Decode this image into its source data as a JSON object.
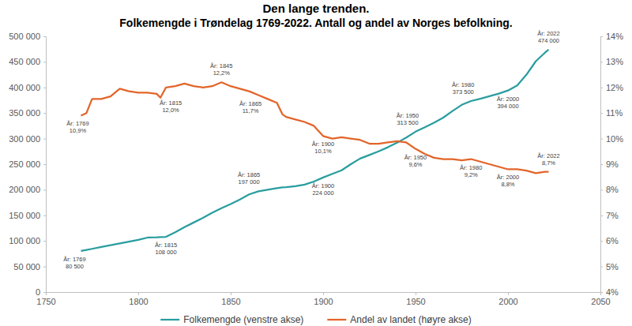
{
  "chart_data": {
    "type": "line",
    "title": "Den lange trenden.",
    "subtitle": "Folkemengde i Trøndelag 1769-2022. Antall og andel av Norges befolkning.",
    "x": [
      1769,
      1772,
      1775,
      1780,
      1785,
      1790,
      1795,
      1800,
      1805,
      1810,
      1812,
      1815,
      1820,
      1825,
      1830,
      1835,
      1840,
      1845,
      1850,
      1855,
      1860,
      1865,
      1870,
      1875,
      1878,
      1880,
      1885,
      1890,
      1895,
      1900,
      1905,
      1910,
      1915,
      1920,
      1925,
      1930,
      1935,
      1940,
      1945,
      1950,
      1955,
      1960,
      1965,
      1970,
      1975,
      1980,
      1985,
      1990,
      1995,
      2000,
      2005,
      2010,
      2015,
      2020,
      2022
    ],
    "series": [
      {
        "name": "Folkemengde (venstre akse)",
        "color": "#2a9d9f",
        "axis": "y",
        "values": [
          80500,
          82500,
          84500,
          88000,
          91500,
          95000,
          98500,
          102000,
          106500,
          107000,
          107500,
          108000,
          117000,
          127000,
          136000,
          145000,
          155000,
          164000,
          172000,
          181000,
          191000,
          197000,
          200000,
          203000,
          204500,
          205000,
          207000,
          210000,
          216000,
          224000,
          231000,
          238000,
          250000,
          261000,
          268000,
          275000,
          283000,
          292000,
          302000,
          313500,
          322000,
          331000,
          341000,
          354000,
          366000,
          373500,
          378000,
          383000,
          388000,
          394000,
          404000,
          425000,
          451000,
          468000,
          474000
        ]
      },
      {
        "name": "Andel av landet (høyre akse)",
        "color": "#e2652a",
        "axis": "y2",
        "values": [
          10.9,
          11.0,
          11.55,
          11.55,
          11.65,
          11.95,
          11.85,
          11.8,
          11.8,
          11.75,
          11.6,
          12.0,
          12.05,
          12.15,
          12.05,
          12.0,
          12.05,
          12.2,
          12.05,
          11.95,
          11.85,
          11.7,
          11.55,
          11.4,
          10.95,
          10.85,
          10.75,
          10.65,
          10.5,
          10.1,
          10.0,
          10.05,
          10.0,
          9.95,
          9.8,
          9.8,
          9.85,
          9.9,
          9.85,
          9.6,
          9.4,
          9.25,
          9.2,
          9.2,
          9.15,
          9.2,
          9.1,
          9.0,
          8.9,
          8.8,
          8.8,
          8.75,
          8.65,
          8.7,
          8.7
        ]
      }
    ],
    "xlim": [
      1750,
      2050
    ],
    "xticks": [
      1750,
      1800,
      1850,
      1900,
      1950,
      2000,
      2050
    ],
    "ylim": [
      0,
      500000
    ],
    "yticks": [
      0,
      {
        "value": 50000,
        "label": "50 000"
      },
      {
        "value": 100000,
        "label": "100 000"
      },
      {
        "value": 150000,
        "label": "150 000"
      },
      {
        "value": 200000,
        "label": "200 000"
      },
      {
        "value": 250000,
        "label": "250 000"
      },
      {
        "value": 300000,
        "label": "300 000"
      },
      {
        "value": 350000,
        "label": "350 000"
      },
      {
        "value": 400000,
        "label": "400 000"
      },
      {
        "value": 450000,
        "label": "450 000"
      },
      {
        "value": 500000,
        "label": "500 000"
      }
    ],
    "y2lim": [
      4,
      14
    ],
    "y2ticks": [
      {
        "value": 4,
        "label": "4%"
      },
      {
        "value": 5,
        "label": "5%"
      },
      {
        "value": 6,
        "label": "6%"
      },
      {
        "value": 7,
        "label": "7%"
      },
      {
        "value": 8,
        "label": "8%"
      },
      {
        "value": 9,
        "label": "9%"
      },
      {
        "value": 10,
        "label": "10%"
      },
      {
        "value": 11,
        "label": "11%"
      },
      {
        "value": 12,
        "label": "12%"
      },
      {
        "value": 13,
        "label": "13%"
      },
      {
        "value": 14,
        "label": "14%"
      }
    ],
    "grid": false,
    "legend": "bottom",
    "annotations": [
      {
        "x": 1769,
        "y": 80500,
        "axis": "y",
        "text": [
          "År: 1769",
          "80 500"
        ]
      },
      {
        "x": 1815,
        "y": 108000,
        "axis": "y",
        "text": [
          "År: 1815",
          "108 000"
        ]
      },
      {
        "x": 1865,
        "y": 197000,
        "axis": "y",
        "text": [
          "År: 1865",
          "197 000"
        ]
      },
      {
        "x": 1900,
        "y": 224000,
        "axis": "y",
        "text": [
          "År: 1900",
          "224 000"
        ]
      },
      {
        "x": 1950,
        "y": 313500,
        "axis": "y",
        "text": [
          "År: 1950",
          "313 500"
        ]
      },
      {
        "x": 1980,
        "y": 373500,
        "axis": "y",
        "text": [
          "År: 1980",
          "373 500"
        ]
      },
      {
        "x": 2000,
        "y": 394000,
        "axis": "y",
        "text": [
          "År: 2000",
          "394 000"
        ]
      },
      {
        "x": 2022,
        "y": 474000,
        "axis": "y",
        "text": [
          "År: 2022",
          "474 000"
        ]
      },
      {
        "x": 1769,
        "y": 10.9,
        "axis": "y2",
        "text": [
          "År: 1769",
          "10,9%"
        ]
      },
      {
        "x": 1815,
        "y": 12.0,
        "axis": "y2",
        "text": [
          "År: 1815",
          "12,0%"
        ]
      },
      {
        "x": 1845,
        "y": 12.2,
        "axis": "y2",
        "text": [
          "År: 1845",
          "12,2%"
        ]
      },
      {
        "x": 1865,
        "y": 11.7,
        "axis": "y2",
        "text": [
          "År: 1865",
          "11,7%"
        ]
      },
      {
        "x": 1900,
        "y": 10.1,
        "axis": "y2",
        "text": [
          "År: 1900",
          "10,1%"
        ]
      },
      {
        "x": 1950,
        "y": 9.6,
        "axis": "y2",
        "text": [
          "År: 1950",
          "9,6%"
        ]
      },
      {
        "x": 1980,
        "y": 9.2,
        "axis": "y2",
        "text": [
          "År: 1980",
          "9,2%"
        ]
      },
      {
        "x": 2000,
        "y": 8.8,
        "axis": "y2",
        "text": [
          "År: 2000",
          "8,8%"
        ]
      },
      {
        "x": 2022,
        "y": 8.7,
        "axis": "y2",
        "text": [
          "År: 2022",
          "8,7%"
        ]
      }
    ]
  }
}
